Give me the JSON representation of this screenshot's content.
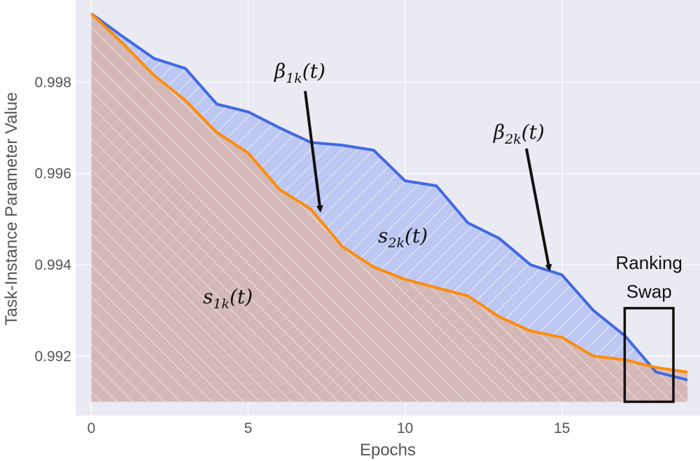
{
  "chart_data": {
    "type": "area",
    "title": "",
    "xlabel": "Epochs",
    "ylabel": "Task-Instance Parameter Value",
    "xlim": [
      -0.5,
      19.4
    ],
    "ylim": [
      0.9907,
      0.9998
    ],
    "xticks": [
      0,
      5,
      10,
      15
    ],
    "yticks": [
      0.992,
      0.994,
      0.996,
      0.998
    ],
    "ytick_labels": [
      "0.992",
      "0.994",
      "0.996",
      "0.998"
    ],
    "grid": true,
    "fill_baseline": 0.991,
    "x": [
      0,
      1,
      2,
      3,
      4,
      5,
      6,
      7,
      8,
      9,
      10,
      11,
      12,
      13,
      14,
      15,
      16,
      17,
      18,
      19
    ],
    "series": [
      {
        "color": "#4169e1",
        "fill": "#b8c4f2",
        "hatch": "\\\\",
        "values": [
          0.9995,
          0.999,
          0.99852,
          0.9983,
          0.99752,
          0.99735,
          0.997,
          0.99668,
          0.99662,
          0.99651,
          0.99584,
          0.99573,
          0.99492,
          0.99458,
          0.994,
          0.99378,
          0.993,
          0.99245,
          0.99165,
          0.99148
        ]
      },
      {
        "color": "#ff8c0a",
        "fill": "#d9b4a7",
        "hatch": "//",
        "values": [
          0.9995,
          0.99885,
          0.99815,
          0.9976,
          0.9969,
          0.99645,
          0.99565,
          0.99522,
          0.9944,
          0.99395,
          0.99368,
          0.9935,
          0.99332,
          0.99286,
          0.99255,
          0.99241,
          0.992,
          0.99192,
          0.99175,
          0.99165
        ]
      }
    ],
    "annotations": [
      {
        "id": "beta1",
        "base": "β",
        "sub": "1k",
        "rest": "(t)",
        "arrow": true,
        "target": [
          7.3,
          0.99519
        ]
      },
      {
        "id": "beta2",
        "base": "β",
        "sub": "2k",
        "rest": "(t)",
        "arrow": true,
        "target": [
          14.6,
          0.9939
        ]
      },
      {
        "id": "s2",
        "base": "s",
        "sub": "2k",
        "rest": "(t)",
        "arrow": false
      },
      {
        "id": "s1",
        "base": "s",
        "sub": "1k",
        "rest": "(t)",
        "arrow": false
      }
    ],
    "highlight_box": {
      "label_lines": [
        "Ranking",
        "Swap"
      ],
      "x_range": [
        17.0,
        19.4
      ],
      "y_range": [
        0.991,
        0.99305
      ]
    }
  }
}
